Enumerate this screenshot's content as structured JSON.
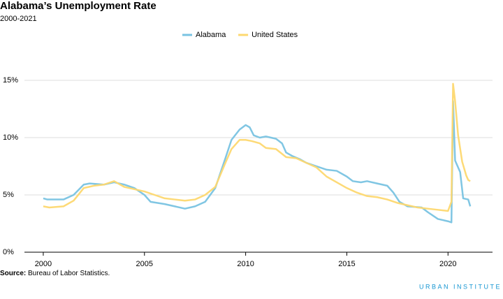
{
  "chart_data": {
    "type": "line",
    "title": "Alabama’s Unemployment Rate",
    "subtitle": "2000-2021",
    "source_label": "Source:",
    "source": "Bureau of Labor Statistics.",
    "brand": "URBAN INSTITUTE",
    "xlim": [
      1999.07,
      2022.2
    ],
    "xticks": [
      2000,
      2005,
      2010,
      2015,
      2020
    ],
    "ylim": [
      0,
      16
    ],
    "yticks": [
      {
        "value": 0,
        "label": "0%"
      },
      {
        "value": 5,
        "label": "5%"
      },
      {
        "value": 10,
        "label": "10%"
      },
      {
        "value": 15,
        "label": "15%"
      }
    ],
    "grid": true,
    "legend": "top",
    "series": [
      {
        "name": "Alabama",
        "color": "#79c3e2",
        "x": [
          2000,
          2000.2,
          2001,
          2001.5,
          2002,
          2002.3,
          2003,
          2003.5,
          2004,
          2004.5,
          2005,
          2005.3,
          2006,
          2006.5,
          2007,
          2007.5,
          2008,
          2008.5,
          2009,
          2009.3,
          2009.7,
          2010,
          2010.2,
          2010.4,
          2010.7,
          2011,
          2011.5,
          2011.8,
          2012,
          2012.3,
          2012.7,
          2013,
          2013.5,
          2014,
          2014.5,
          2015,
          2015.3,
          2015.7,
          2016,
          2016.5,
          2017,
          2017.3,
          2017.6,
          2018,
          2018.7,
          2019,
          2019.5,
          2020,
          2020.17,
          2020.25,
          2020.35,
          2020.6,
          2020.75,
          2021,
          2021.1
        ],
        "values": [
          4.7,
          4.6,
          4.6,
          5.0,
          5.9,
          6.0,
          5.9,
          6.1,
          5.9,
          5.6,
          5.0,
          4.4,
          4.2,
          4.0,
          3.8,
          4.0,
          4.4,
          5.6,
          8.2,
          9.8,
          10.7,
          11.1,
          10.9,
          10.2,
          10.0,
          10.1,
          9.9,
          9.5,
          8.7,
          8.4,
          8.1,
          7.8,
          7.5,
          7.2,
          7.1,
          6.6,
          6.2,
          6.1,
          6.2,
          6.0,
          5.8,
          5.2,
          4.4,
          4.0,
          3.9,
          3.5,
          2.9,
          2.7,
          2.6,
          13.2,
          8.0,
          7.0,
          4.7,
          4.6,
          4.0
        ]
      },
      {
        "name": "United States",
        "color": "#fdd870",
        "x": [
          2000,
          2000.3,
          2001,
          2001.5,
          2002,
          2002.5,
          2003,
          2003.5,
          2004,
          2004.5,
          2005,
          2005.5,
          2006,
          2006.5,
          2007,
          2007.5,
          2008,
          2008.5,
          2009,
          2009.3,
          2009.7,
          2010,
          2010.3,
          2010.7,
          2011,
          2011.5,
          2012,
          2012.5,
          2013,
          2013.5,
          2014,
          2014.5,
          2015,
          2015.5,
          2016,
          2016.5,
          2017,
          2017.5,
          2018,
          2018.5,
          2019,
          2019.5,
          2020,
          2020.17,
          2020.25,
          2020.35,
          2020.5,
          2020.7,
          2020.9,
          2021,
          2021.1
        ],
        "values": [
          4.0,
          3.9,
          4.0,
          4.5,
          5.6,
          5.8,
          5.9,
          6.2,
          5.7,
          5.5,
          5.3,
          5.0,
          4.7,
          4.6,
          4.5,
          4.6,
          5.0,
          5.7,
          7.8,
          9.0,
          9.8,
          9.8,
          9.7,
          9.5,
          9.1,
          9.0,
          8.3,
          8.2,
          7.8,
          7.4,
          6.6,
          6.1,
          5.6,
          5.2,
          4.9,
          4.8,
          4.6,
          4.3,
          4.1,
          3.9,
          3.8,
          3.7,
          3.6,
          4.4,
          14.7,
          13.2,
          10.2,
          7.9,
          6.7,
          6.3,
          6.2
        ]
      }
    ]
  }
}
